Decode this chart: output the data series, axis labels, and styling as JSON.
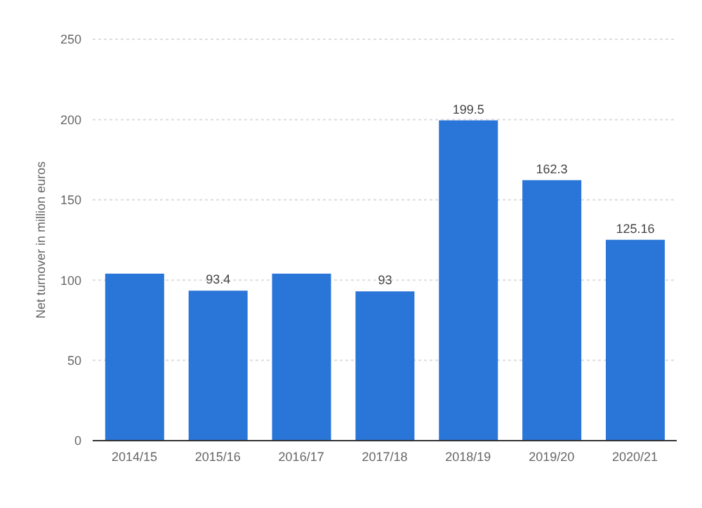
{
  "chart_data": {
    "type": "bar",
    "ylabel": "Net turnover in million euros",
    "categories": [
      "2014/15",
      "2015/16",
      "2016/17",
      "2017/18",
      "2018/19",
      "2019/20",
      "2020/21"
    ],
    "values": [
      104,
      93.4,
      104,
      93,
      199.5,
      162.3,
      125.16
    ],
    "value_labels": [
      null,
      "93.4",
      null,
      "93",
      "199.5",
      "162.3",
      "125.16"
    ],
    "color": "#2a75d8",
    "ylim": [
      0,
      250
    ],
    "yticks": [
      0,
      50,
      100,
      150,
      200,
      250
    ],
    "grid": "y"
  }
}
